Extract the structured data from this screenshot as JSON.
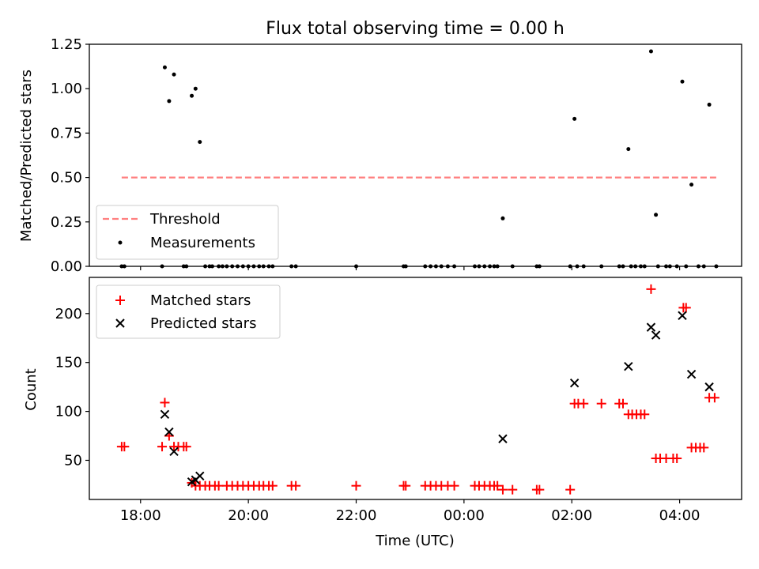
{
  "chart_data": [
    {
      "type": "scatter",
      "title": "Flux total observing time = 0.00 h",
      "xlabel": "",
      "ylabel": "Matched/Predicted stars",
      "x_unit": "hours since 00:00 UTC",
      "xlim": [
        -6.95,
        5.15
      ],
      "ylim": [
        0,
        1.25
      ],
      "yticks": [
        0.0,
        0.25,
        0.5,
        0.75,
        1.0,
        1.25
      ],
      "ytick_labels": [
        "0.00",
        "0.25",
        "0.50",
        "0.75",
        "1.00",
        "1.25"
      ],
      "legend_position": "lower-left",
      "threshold": {
        "name": "Threshold",
        "value": 0.5,
        "x_range": [
          -6.35,
          4.7
        ],
        "color": "#ff7f7f",
        "style": "dashed"
      },
      "measurements": {
        "name": "Measurements",
        "color": "#000000",
        "points": [
          [
            -6.35,
            0
          ],
          [
            -6.3,
            0
          ],
          [
            -5.6,
            0
          ],
          [
            -5.55,
            1.12
          ],
          [
            -5.47,
            0.93
          ],
          [
            -5.38,
            1.08
          ],
          [
            -5.2,
            0
          ],
          [
            -5.15,
            0
          ],
          [
            -5.05,
            0.96
          ],
          [
            -4.98,
            1.0
          ],
          [
            -4.9,
            0.7
          ],
          [
            -4.8,
            0
          ],
          [
            -4.72,
            0
          ],
          [
            -4.67,
            0
          ],
          [
            -4.55,
            0
          ],
          [
            -4.48,
            0
          ],
          [
            -4.4,
            0
          ],
          [
            -4.3,
            0
          ],
          [
            -4.2,
            0
          ],
          [
            -4.1,
            0
          ],
          [
            -4.0,
            0
          ],
          [
            -3.9,
            0
          ],
          [
            -3.8,
            0
          ],
          [
            -3.72,
            0
          ],
          [
            -3.62,
            0
          ],
          [
            -3.55,
            0
          ],
          [
            -3.2,
            0
          ],
          [
            -3.12,
            0
          ],
          [
            -2.0,
            0
          ],
          [
            -1.12,
            0
          ],
          [
            -1.08,
            0
          ],
          [
            -0.72,
            0
          ],
          [
            -0.62,
            0
          ],
          [
            -0.52,
            0
          ],
          [
            -0.42,
            0
          ],
          [
            -0.3,
            0
          ],
          [
            -0.18,
            0
          ],
          [
            0.2,
            0
          ],
          [
            0.28,
            0
          ],
          [
            0.38,
            0
          ],
          [
            0.48,
            0
          ],
          [
            0.56,
            0
          ],
          [
            0.62,
            0
          ],
          [
            0.72,
            0.27
          ],
          [
            0.9,
            0
          ],
          [
            1.35,
            0
          ],
          [
            1.4,
            0
          ],
          [
            1.97,
            0
          ],
          [
            2.05,
            0.83
          ],
          [
            2.1,
            0
          ],
          [
            2.22,
            0
          ],
          [
            2.55,
            0
          ],
          [
            2.88,
            0
          ],
          [
            2.95,
            0
          ],
          [
            3.05,
            0.66
          ],
          [
            3.1,
            0
          ],
          [
            3.18,
            0
          ],
          [
            3.28,
            0
          ],
          [
            3.35,
            0
          ],
          [
            3.47,
            1.21
          ],
          [
            3.56,
            0.29
          ],
          [
            3.6,
            0
          ],
          [
            3.75,
            0
          ],
          [
            3.82,
            0
          ],
          [
            3.95,
            0
          ],
          [
            4.05,
            1.04
          ],
          [
            4.12,
            0
          ],
          [
            4.22,
            0.46
          ],
          [
            4.35,
            0
          ],
          [
            4.45,
            0
          ],
          [
            4.55,
            0.91
          ],
          [
            4.68,
            0
          ]
        ]
      }
    },
    {
      "type": "scatter",
      "title": "",
      "xlabel": "Time (UTC)",
      "ylabel": "Count",
      "x_unit": "hours since 00:00 UTC",
      "xlim": [
        -6.95,
        5.15
      ],
      "ylim": [
        10,
        237
      ],
      "yticks": [
        50,
        100,
        150,
        200
      ],
      "ytick_labels": [
        "50",
        "100",
        "150",
        "200"
      ],
      "xticks": [
        -6,
        -4,
        -2,
        0,
        2,
        4
      ],
      "xtick_labels": [
        "18:00",
        "20:00",
        "22:00",
        "00:00",
        "02:00",
        "04:00"
      ],
      "legend_position": "top-left",
      "series": [
        {
          "name": "Matched stars",
          "marker": "plus",
          "color": "#ff0000",
          "points": [
            [
              -6.35,
              64
            ],
            [
              -6.3,
              64
            ],
            [
              -5.6,
              64
            ],
            [
              -5.55,
              109
            ],
            [
              -5.47,
              75
            ],
            [
              -5.38,
              64
            ],
            [
              -5.3,
              64
            ],
            [
              -5.2,
              64
            ],
            [
              -5.15,
              64
            ],
            [
              -5.05,
              27
            ],
            [
              -4.98,
              24
            ],
            [
              -4.9,
              24
            ],
            [
              -4.8,
              24
            ],
            [
              -4.72,
              24
            ],
            [
              -4.62,
              24
            ],
            [
              -4.55,
              24
            ],
            [
              -4.4,
              24
            ],
            [
              -4.3,
              24
            ],
            [
              -4.2,
              24
            ],
            [
              -4.1,
              24
            ],
            [
              -4.0,
              24
            ],
            [
              -3.9,
              24
            ],
            [
              -3.8,
              24
            ],
            [
              -3.72,
              24
            ],
            [
              -3.62,
              24
            ],
            [
              -3.55,
              24
            ],
            [
              -3.2,
              24
            ],
            [
              -3.12,
              24
            ],
            [
              -2.0,
              24
            ],
            [
              -1.12,
              24
            ],
            [
              -1.08,
              24
            ],
            [
              -0.72,
              24
            ],
            [
              -0.62,
              24
            ],
            [
              -0.52,
              24
            ],
            [
              -0.42,
              24
            ],
            [
              -0.3,
              24
            ],
            [
              -0.18,
              24
            ],
            [
              0.2,
              24
            ],
            [
              0.28,
              24
            ],
            [
              0.38,
              24
            ],
            [
              0.48,
              24
            ],
            [
              0.56,
              24
            ],
            [
              0.62,
              24
            ],
            [
              0.72,
              20
            ],
            [
              0.9,
              20
            ],
            [
              1.35,
              20
            ],
            [
              1.4,
              20
            ],
            [
              1.97,
              20
            ],
            [
              2.05,
              108
            ],
            [
              2.12,
              108
            ],
            [
              2.22,
              108
            ],
            [
              2.55,
              108
            ],
            [
              2.88,
              108
            ],
            [
              2.95,
              108
            ],
            [
              3.05,
              97
            ],
            [
              3.12,
              97
            ],
            [
              3.2,
              97
            ],
            [
              3.28,
              97
            ],
            [
              3.35,
              97
            ],
            [
              3.47,
              225
            ],
            [
              3.56,
              52
            ],
            [
              3.64,
              52
            ],
            [
              3.75,
              52
            ],
            [
              3.88,
              52
            ],
            [
              3.95,
              52
            ],
            [
              4.07,
              206
            ],
            [
              4.12,
              206
            ],
            [
              4.22,
              63
            ],
            [
              4.3,
              63
            ],
            [
              4.38,
              63
            ],
            [
              4.45,
              63
            ],
            [
              4.55,
              114
            ],
            [
              4.65,
              114
            ]
          ]
        },
        {
          "name": "Predicted stars",
          "marker": "x",
          "color": "#000000",
          "points": [
            [
              -5.55,
              97
            ],
            [
              -5.47,
              79
            ],
            [
              -5.38,
              59
            ],
            [
              -5.05,
              28
            ],
            [
              -4.98,
              30
            ],
            [
              -4.9,
              34
            ],
            [
              0.72,
              72
            ],
            [
              2.05,
              129
            ],
            [
              3.05,
              146
            ],
            [
              3.47,
              186
            ],
            [
              3.56,
              178
            ],
            [
              4.05,
              198
            ],
            [
              4.22,
              138
            ],
            [
              4.55,
              125
            ]
          ]
        }
      ]
    }
  ]
}
